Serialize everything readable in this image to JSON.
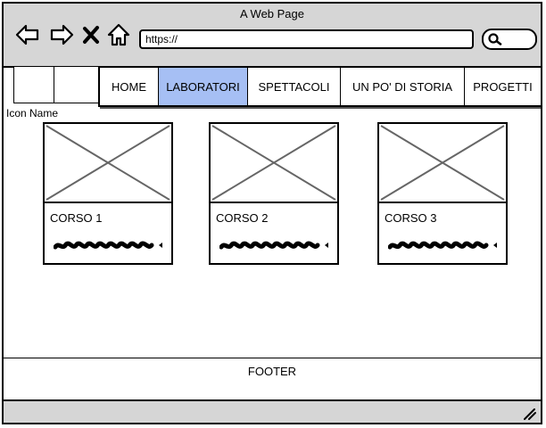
{
  "window": {
    "title": "A Web Page"
  },
  "toolbar": {
    "back_icon": "back-arrow-icon",
    "forward_icon": "forward-arrow-icon",
    "stop_icon": "close-icon",
    "home_icon": "home-icon",
    "url": "https://",
    "search_icon": "search-icon"
  },
  "header": {
    "icon_name": "Icon Name"
  },
  "nav": {
    "items": [
      {
        "label": "HOME"
      },
      {
        "label": "LABORATORI"
      },
      {
        "label": "SPETTACOLI"
      },
      {
        "label": "UN PO' DI STORIA"
      },
      {
        "label": "PROGETTI"
      }
    ],
    "active_index": 1,
    "active_color": "#a6bff4"
  },
  "cards": [
    {
      "title": "CORSO 1",
      "image_icon": "image-placeholder-icon"
    },
    {
      "title": "CORSO 2",
      "image_icon": "image-placeholder-icon"
    },
    {
      "title": "CORSO 3",
      "image_icon": "image-placeholder-icon"
    }
  ],
  "footer": {
    "label": "FOOTER"
  },
  "colors": {
    "chrome": "#d6d6d6",
    "border": "#000000"
  }
}
